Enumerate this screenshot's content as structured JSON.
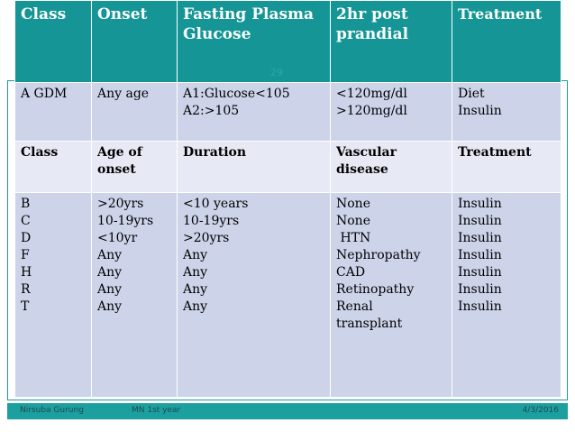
{
  "table": {
    "header": [
      "Class",
      "Onset",
      "Fasting Plasma Glucose",
      "2hr post prandial",
      "Treatment"
    ],
    "row1": {
      "class": "A  GDM",
      "onset": "Any age",
      "fasting": [
        "A1:Glucose<105",
        "A2:>105"
      ],
      "prandial": [
        "<120mg/dl",
        ">120mg/dl"
      ],
      "treatment": [
        "Diet",
        "Insulin"
      ]
    },
    "row2": [
      "Class",
      "Age of onset",
      "Duration",
      "Vascular disease",
      "Treatment"
    ],
    "row3": {
      "class": [
        "B",
        "C",
        "D",
        "F",
        "H",
        "R",
        "T"
      ],
      "onset": [
        ">20yrs",
        "10-19yrs",
        "<10yr",
        "Any",
        "Any",
        "Any",
        "Any"
      ],
      "duration": [
        "<10 years",
        "10-19yrs",
        ">20yrs",
        "Any",
        "Any",
        "Any",
        "Any"
      ],
      "vascular": [
        "None",
        "None",
        " HTN",
        "Nephropathy",
        "CAD",
        "Retinopathy",
        "Renal transplant"
      ],
      "treatment": [
        "Insulin",
        "Insulin",
        "Insulin",
        "Insulin",
        "Insulin",
        "Insulin",
        "Insulin"
      ]
    }
  },
  "slide_number": "29",
  "footer": {
    "author": "Nirsuba Gurung",
    "course": "MN 1st year",
    "date": "4/3/2016"
  },
  "colors": {
    "header_bg": "#159595",
    "row_dark": "#cdd4ea",
    "row_light": "#e7eaf5",
    "accent": "#1c9f9f"
  }
}
